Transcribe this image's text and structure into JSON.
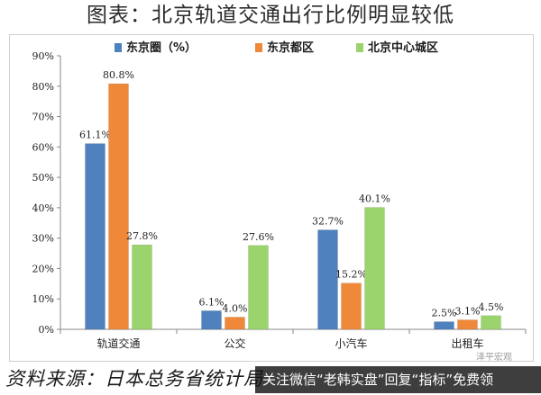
{
  "title": "图表：北京轨道交通出行比例明显较低",
  "footer": {
    "source_text": "资料来源：日本总务省统计局",
    "wechat_text": "关注微信“老韩实盘”回复“指标”免费领",
    "watermark": "泽平宏观"
  },
  "colors": {
    "series1": "#4e81bd",
    "series2": "#f0883a",
    "series3": "#9bd46c"
  },
  "chart_data": {
    "type": "bar",
    "title": "图表：北京轨道交通出行比例明显较低",
    "xlabel": "",
    "ylabel": "",
    "categories": [
      "轨道交通",
      "公交",
      "小汽车",
      "出租车"
    ],
    "series": [
      {
        "name": "东京圈（%）",
        "values": [
          61.1,
          6.1,
          32.7,
          2.5
        ],
        "labels": [
          "61.1%",
          "6.1%",
          "32.7%",
          "2.5%"
        ]
      },
      {
        "name": "东京都区",
        "values": [
          80.8,
          4.0,
          15.2,
          3.1
        ],
        "labels": [
          "80.8%",
          "4.0%",
          "15.2%",
          "3.1%"
        ]
      },
      {
        "name": "北京中心城区",
        "values": [
          27.8,
          27.6,
          40.1,
          4.5
        ],
        "labels": [
          "27.8%",
          "27.6%",
          "40.1%",
          "4.5%"
        ]
      }
    ],
    "yticks": [
      "0%",
      "10%",
      "20%",
      "30%",
      "40%",
      "50%",
      "60%",
      "70%",
      "80%",
      "90%"
    ],
    "ylim": [
      0,
      90
    ],
    "grid": false,
    "legend_position": "top"
  }
}
